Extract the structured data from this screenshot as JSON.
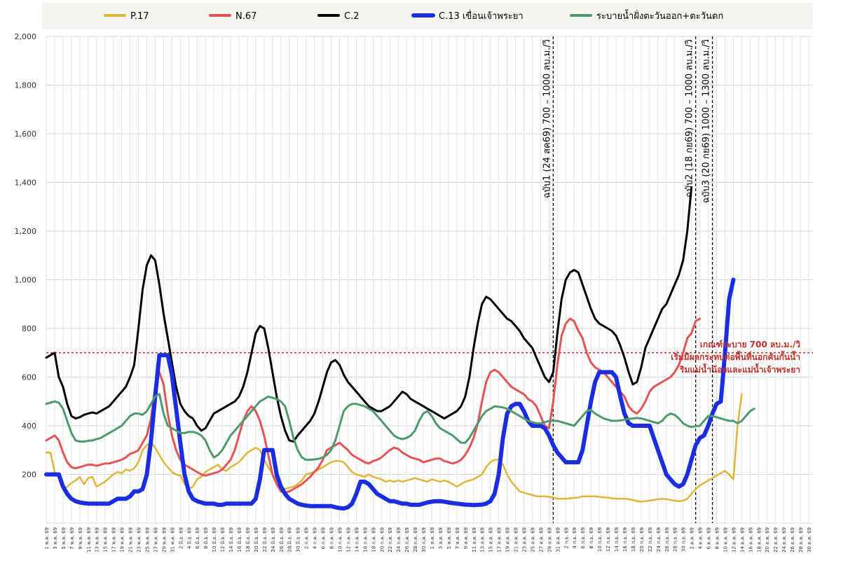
{
  "chart_data": {
    "type": "line",
    "ylim": [
      0,
      2000
    ],
    "yticks": [
      "2,000",
      "1,800",
      "1,600",
      "1,400",
      "1,200",
      "1,000",
      "800",
      "600",
      "400",
      "200"
    ],
    "grid": true,
    "legend_position": "top",
    "series": [
      {
        "name": "P.17",
        "color": "#e1b43a",
        "width": 2.5,
        "values": [
          290,
          290,
          210,
          190,
          140,
          150,
          165,
          175,
          190,
          160,
          185,
          190,
          150,
          160,
          170,
          185,
          200,
          210,
          205,
          220,
          215,
          225,
          250,
          300,
          320,
          330,
          310,
          280,
          250,
          230,
          210,
          200,
          195,
          160,
          140,
          150,
          180,
          190,
          210,
          220,
          230,
          240,
          220,
          215,
          230,
          240,
          250,
          270,
          290,
          300,
          310,
          300,
          260,
          230,
          200,
          180,
          150,
          140,
          145,
          150,
          160,
          175,
          200,
          205,
          210,
          220,
          230,
          240,
          250,
          255,
          255,
          250,
          230,
          210,
          200,
          195,
          190,
          200,
          190,
          185,
          180,
          170,
          175,
          170,
          175,
          170,
          175,
          180,
          185,
          180,
          175,
          170,
          180,
          175,
          170,
          175,
          170,
          160,
          150,
          160,
          170,
          175,
          180,
          190,
          200,
          230,
          250,
          260,
          260,
          240,
          200,
          170,
          150,
          130,
          125,
          120,
          115,
          110,
          110,
          110,
          108,
          105,
          100,
          100,
          100,
          102,
          104,
          105,
          110,
          110,
          110,
          110,
          108,
          106,
          105,
          102,
          100,
          100,
          100,
          98,
          95,
          90,
          88,
          90,
          92,
          95,
          98,
          100,
          98,
          95,
          92,
          90,
          92,
          100,
          120,
          140,
          155,
          165,
          175,
          185,
          195,
          205,
          215,
          200,
          180,
          400,
          530
        ],
        "data_name": "series-line-p17"
      },
      {
        "name": "N.67",
        "color": "#e35454",
        "width": 3,
        "values": [
          340,
          350,
          360,
          340,
          290,
          250,
          230,
          225,
          230,
          235,
          240,
          240,
          235,
          240,
          245,
          245,
          250,
          255,
          260,
          270,
          285,
          290,
          300,
          330,
          360,
          430,
          560,
          620,
          570,
          450,
          360,
          300,
          260,
          240,
          230,
          220,
          210,
          200,
          195,
          200,
          205,
          210,
          220,
          240,
          260,
          300,
          360,
          420,
          460,
          480,
          460,
          420,
          360,
          280,
          200,
          160,
          130,
          125,
          130,
          140,
          150,
          160,
          175,
          190,
          210,
          230,
          260,
          300,
          310,
          320,
          330,
          315,
          300,
          280,
          270,
          260,
          250,
          245,
          255,
          260,
          270,
          285,
          300,
          310,
          305,
          290,
          280,
          270,
          265,
          260,
          250,
          255,
          260,
          265,
          265,
          255,
          250,
          245,
          250,
          260,
          280,
          310,
          350,
          410,
          500,
          580,
          620,
          630,
          620,
          600,
          580,
          560,
          550,
          540,
          530,
          510,
          500,
          480,
          440,
          400,
          390,
          500,
          650,
          770,
          820,
          840,
          830,
          790,
          760,
          700,
          660,
          640,
          630,
          620,
          600,
          580,
          560,
          540,
          520,
          480,
          460,
          450,
          470,
          500,
          540,
          560,
          570,
          580,
          590,
          600,
          620,
          650,
          700,
          760,
          780,
          830,
          840
        ],
        "data_name": "series-line-n67"
      },
      {
        "name": "C.2",
        "color": "#000000",
        "width": 3,
        "values": [
          680,
          690,
          700,
          600,
          560,
          490,
          440,
          430,
          435,
          445,
          450,
          455,
          450,
          460,
          470,
          480,
          500,
          520,
          540,
          560,
          600,
          650,
          800,
          960,
          1060,
          1100,
          1080,
          980,
          860,
          760,
          660,
          560,
          490,
          460,
          440,
          430,
          400,
          380,
          390,
          420,
          450,
          460,
          470,
          480,
          490,
          500,
          520,
          560,
          620,
          700,
          780,
          810,
          800,
          720,
          620,
          520,
          440,
          380,
          340,
          335,
          360,
          380,
          400,
          420,
          450,
          500,
          560,
          620,
          660,
          670,
          650,
          610,
          580,
          560,
          540,
          520,
          500,
          480,
          470,
          460,
          460,
          470,
          480,
          500,
          520,
          540,
          530,
          510,
          500,
          490,
          480,
          470,
          460,
          450,
          440,
          430,
          440,
          450,
          460,
          480,
          520,
          600,
          720,
          820,
          900,
          930,
          920,
          900,
          880,
          860,
          840,
          830,
          810,
          790,
          760,
          740,
          720,
          680,
          640,
          600,
          580,
          620,
          780,
          920,
          1000,
          1030,
          1040,
          1030,
          980,
          930,
          880,
          840,
          820,
          810,
          800,
          790,
          770,
          730,
          680,
          620,
          570,
          580,
          640,
          720,
          760,
          800,
          840,
          880,
          900,
          940,
          980,
          1020,
          1080,
          1200,
          1380
        ],
        "data_name": "series-line-c2"
      },
      {
        "name": "C.13 เขื่อนเจ้าพระยา",
        "color": "#1a2de0",
        "width": 6,
        "values": [
          200,
          200,
          200,
          200,
          150,
          120,
          100,
          90,
          85,
          82,
          80,
          80,
          80,
          80,
          80,
          80,
          90,
          100,
          100,
          100,
          110,
          130,
          130,
          140,
          200,
          340,
          520,
          690,
          690,
          690,
          610,
          470,
          330,
          200,
          130,
          100,
          90,
          85,
          80,
          80,
          80,
          75,
          75,
          80,
          80,
          80,
          80,
          80,
          80,
          80,
          100,
          180,
          300,
          300,
          300,
          200,
          150,
          120,
          100,
          90,
          80,
          75,
          72,
          70,
          70,
          70,
          70,
          70,
          70,
          65,
          62,
          60,
          65,
          80,
          120,
          170,
          170,
          160,
          140,
          120,
          110,
          100,
          90,
          90,
          85,
          80,
          80,
          75,
          75,
          75,
          80,
          85,
          88,
          90,
          90,
          88,
          85,
          82,
          80,
          78,
          76,
          75,
          74,
          75,
          76,
          80,
          90,
          120,
          200,
          350,
          450,
          480,
          490,
          490,
          460,
          420,
          400,
          400,
          400,
          390,
          360,
          320,
          290,
          270,
          250,
          250,
          250,
          250,
          300,
          400,
          500,
          580,
          620,
          620,
          620,
          620,
          600,
          520,
          450,
          410,
          400,
          400,
          400,
          400,
          400,
          350,
          300,
          250,
          200,
          180,
          160,
          150,
          160,
          200,
          260,
          320,
          350,
          360,
          400,
          450,
          490,
          500,
          700,
          920,
          1000
        ],
        "data_name": "series-line-c13"
      },
      {
        "name": "ระบายน้ำฝั่งตะวันออก+ตะวันตก",
        "color": "#4e9a6b",
        "width": 3,
        "values": [
          490,
          495,
          500,
          495,
          470,
          420,
          370,
          340,
          335,
          335,
          338,
          340,
          345,
          350,
          360,
          370,
          380,
          390,
          400,
          420,
          440,
          450,
          450,
          445,
          460,
          490,
          520,
          530,
          450,
          400,
          390,
          380,
          370,
          370,
          375,
          375,
          370,
          360,
          340,
          300,
          270,
          280,
          300,
          330,
          360,
          380,
          400,
          420,
          440,
          460,
          480,
          500,
          510,
          520,
          515,
          510,
          500,
          480,
          420,
          350,
          300,
          270,
          260,
          260,
          262,
          264,
          270,
          280,
          300,
          340,
          400,
          460,
          480,
          490,
          490,
          485,
          480,
          470,
          460,
          440,
          420,
          400,
          380,
          360,
          350,
          345,
          350,
          360,
          380,
          420,
          450,
          460,
          440,
          410,
          390,
          380,
          370,
          360,
          345,
          330,
          330,
          350,
          380,
          410,
          440,
          460,
          470,
          480,
          478,
          475,
          470,
          460,
          450,
          440,
          430,
          420,
          415,
          410,
          410,
          415,
          420,
          420,
          420,
          415,
          410,
          405,
          400,
          420,
          440,
          460,
          465,
          450,
          440,
          430,
          425,
          420,
          420,
          422,
          425,
          428,
          430,
          432,
          430,
          425,
          420,
          415,
          410,
          420,
          440,
          450,
          445,
          430,
          410,
          400,
          395,
          398,
          400,
          420,
          440,
          440,
          435,
          430,
          425,
          420,
          420,
          410,
          420,
          440,
          460,
          470
        ],
        "data_name": "series-line-drain"
      }
    ],
    "threshold": {
      "value": 700,
      "color": "#c0302b"
    },
    "annotation_lines": [
      {
        "index": 121,
        "label": "ฉบับ1 (24 สค69) 700 – 1000 ลบ.ม./วิ",
        "data_name": "announcement-line-1"
      },
      {
        "index": 155,
        "label": "ฉบับ2 (18 กย69) 700 – 1000 ลบ.ม./วิ",
        "data_name": "announcement-line-2"
      },
      {
        "index": 159,
        "label": "ฉบับ3 (20 กย69) 1000 – 1300 ลบ.ม./วิ",
        "data_name": "announcement-line-3"
      }
    ],
    "threshold_note": [
      "เกณฑ์ระบาย 700 ลบ.ม./วิ",
      "เริ่มมีผลกระทบต่อพื้นที่นอกคันกั้นน้ำ",
      "ริมแม่น้ำน้อยและแม่น้ำเจ้าพระยา"
    ],
    "x_tick_labels": [
      "1 พ.ค. 69",
      "3 พ.ค. 69",
      "5 พ.ค. 69",
      "7 พ.ค. 69",
      "9 พ.ค. 69",
      "11 พ.ค. 69",
      "13 พ.ค. 69",
      "15 พ.ค. 69",
      "17 พ.ค. 69",
      "19 พ.ค. 69",
      "21 พ.ค. 69",
      "23 พ.ค. 69",
      "25 พ.ค. 69",
      "27 พ.ค. 69",
      "29 พ.ค. 69",
      "31 พ.ค. 69",
      "2 มิ.ย. 69",
      "4 มิ.ย. 69",
      "6 มิ.ย. 69",
      "8 มิ.ย. 69",
      "10 มิ.ย. 69",
      "12 มิ.ย. 69",
      "14 มิ.ย. 69",
      "16 มิ.ย. 69",
      "18 มิ.ย. 69",
      "20 มิ.ย. 69",
      "22 มิ.ย. 69",
      "24 มิ.ย. 69",
      "26 มิ.ย. 69",
      "28 มิ.ย. 69",
      "30 มิ.ย. 69",
      "2 ก.ค. 69",
      "4 ก.ค. 69",
      "6 ก.ค. 69",
      "8 ก.ค. 69",
      "10 ก.ค. 69",
      "12 ก.ค. 69",
      "14 ก.ค. 69",
      "16 ก.ค. 69",
      "18 ก.ค. 69",
      "20 ก.ค. 69",
      "22 ก.ค. 69",
      "24 ก.ค. 69",
      "26 ก.ค. 69",
      "28 ก.ค. 69",
      "30 ก.ค. 69",
      "1 ส.ค. 69",
      "3 ส.ค. 69",
      "5 ส.ค. 69",
      "7 ส.ค. 69",
      "9 ส.ค. 69",
      "11 ส.ค. 69",
      "13 ส.ค. 69",
      "15 ส.ค. 69",
      "17 ส.ค. 69",
      "19 ส.ค. 69",
      "21 ส.ค. 69",
      "23 ส.ค. 69",
      "25 ส.ค. 69",
      "27 ส.ค. 69",
      "29 ส.ค. 69",
      "31 ส.ค. 69",
      "2 ก.ย. 69",
      "4 ก.ย. 69",
      "6 ก.ย. 69",
      "8 ก.ย. 69",
      "10 ก.ย. 69",
      "12 ก.ย. 69",
      "14 ก.ย. 69",
      "16 ก.ย. 69",
      "18 ก.ย. 69",
      "20 ก.ย. 69",
      "22 ก.ย. 69",
      "24 ก.ย. 69",
      "26 ก.ย. 69",
      "28 ก.ย. 69",
      "30 ก.ย. 69",
      "2 ต.ค. 69",
      "4 ต.ค. 69",
      "6 ต.ค. 69",
      "8 ต.ค. 69",
      "10 ต.ค. 69",
      "12 ต.ค. 69",
      "14 ต.ค. 69",
      "16 ต.ค. 69",
      "18 ต.ค. 69",
      "20 ต.ค. 69",
      "22 ต.ค. 69",
      "24 ต.ค. 69",
      "26 ต.ค. 69",
      "28 ต.ค. 69",
      "30 ต.ค. 69"
    ],
    "x_day_count": 184
  }
}
